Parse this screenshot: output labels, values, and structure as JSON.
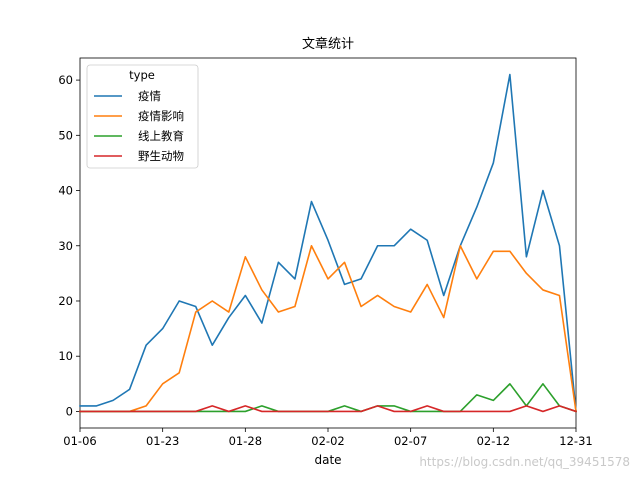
{
  "chart_data": {
    "type": "line",
    "title": "文章统计",
    "xlabel": "date",
    "ylabel": "",
    "x_tick_labels": [
      "01-06",
      "01-23",
      "01-28",
      "02-02",
      "02-07",
      "02-12",
      "12-31"
    ],
    "x_tick_positions": [
      0,
      5,
      10,
      15,
      20,
      25,
      30
    ],
    "x_points": [
      0,
      1,
      2,
      3,
      4,
      5,
      6,
      7,
      8,
      9,
      10,
      11,
      12,
      13,
      14,
      15,
      16,
      17,
      18,
      19,
      20,
      21,
      22,
      23,
      24,
      25,
      26,
      27,
      28,
      29,
      30
    ],
    "xlim": [
      0,
      30
    ],
    "ylim": [
      -3,
      64
    ],
    "y_ticks": [
      0,
      10,
      20,
      30,
      40,
      50,
      60
    ],
    "grid": false,
    "legend": {
      "title": "type",
      "placement": "top-left"
    },
    "series": [
      {
        "name": "疫情",
        "color": "#1f77b4",
        "values": [
          1,
          1,
          2,
          4,
          12,
          15,
          20,
          19,
          12,
          17,
          21,
          16,
          27,
          24,
          38,
          31,
          23,
          24,
          30,
          30,
          33,
          31,
          21,
          30,
          37,
          45,
          61,
          28,
          40,
          30,
          0
        ]
      },
      {
        "name": "疫情影响",
        "color": "#ff7f0e",
        "values": [
          0,
          0,
          0,
          0,
          1,
          5,
          7,
          18,
          20,
          18,
          28,
          22,
          18,
          19,
          30,
          24,
          27,
          19,
          21,
          19,
          18,
          23,
          17,
          30,
          24,
          29,
          29,
          25,
          22,
          21,
          0
        ]
      },
      {
        "name": "线上教育",
        "color": "#2ca02c",
        "values": [
          0,
          0,
          0,
          0,
          0,
          0,
          0,
          0,
          0,
          0,
          0,
          1,
          0,
          0,
          0,
          0,
          1,
          0,
          1,
          1,
          0,
          0,
          0,
          0,
          3,
          2,
          5,
          1,
          5,
          1,
          0
        ]
      },
      {
        "name": "野生动物",
        "color": "#d62728",
        "values": [
          0,
          0,
          0,
          0,
          0,
          0,
          0,
          0,
          1,
          0,
          1,
          0,
          0,
          0,
          0,
          0,
          0,
          0,
          1,
          0,
          0,
          1,
          0,
          0,
          0,
          0,
          0,
          1,
          0,
          1,
          0
        ]
      }
    ]
  },
  "watermark": "https://blog.csdn.net/qq_39451578"
}
